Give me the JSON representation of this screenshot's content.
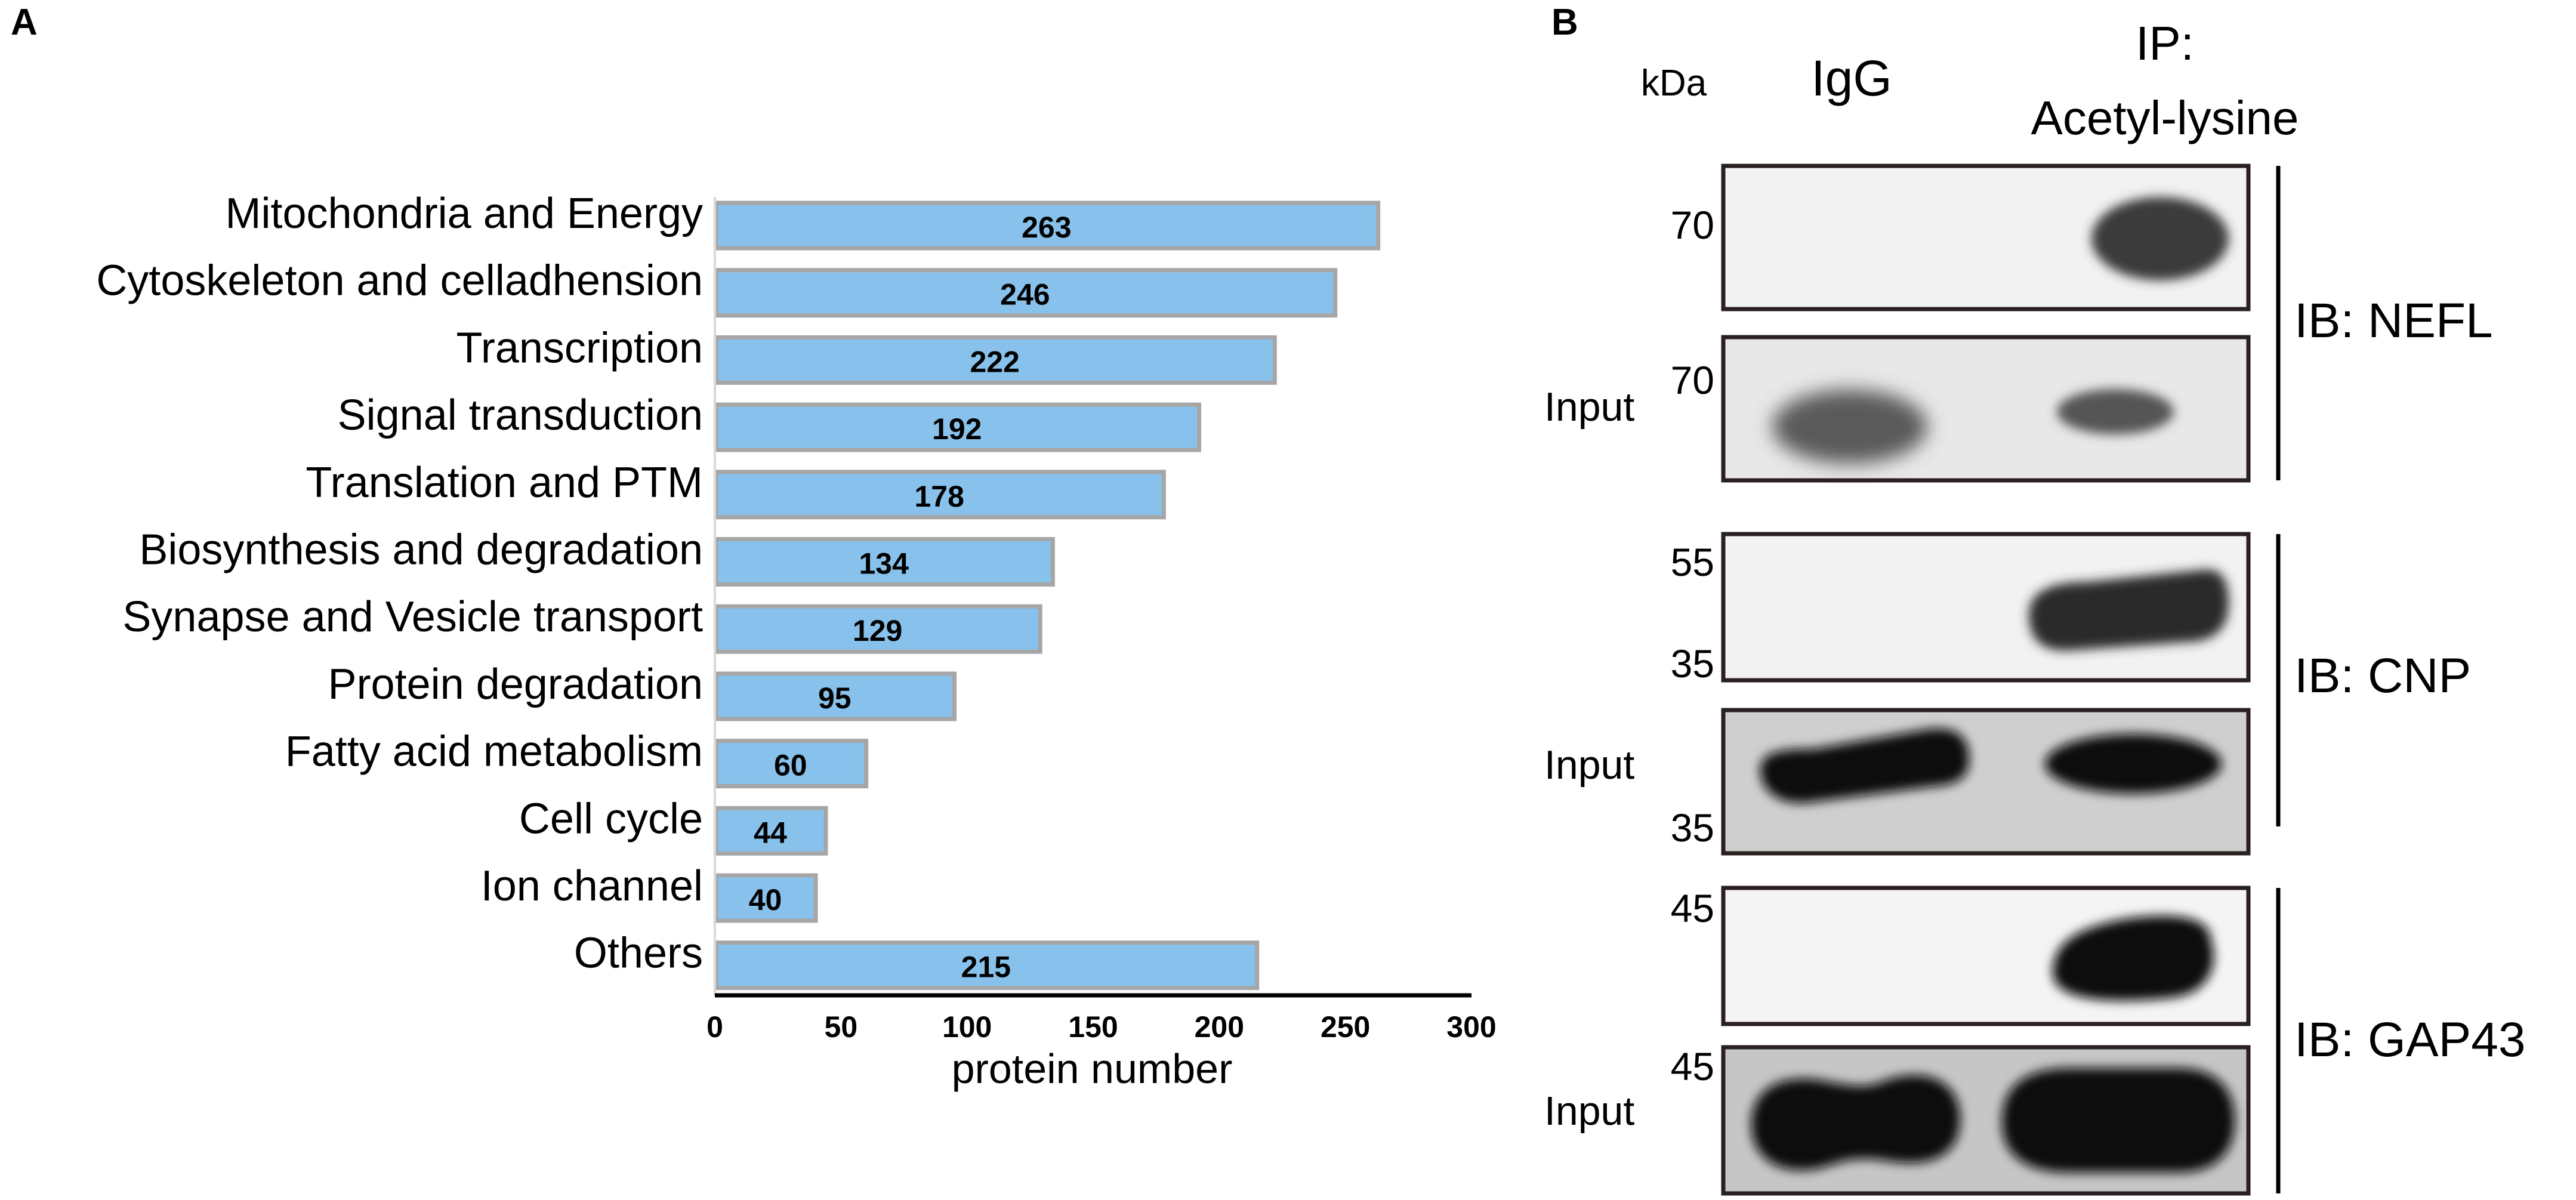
{
  "panel_a": {
    "letter": "A"
  },
  "panel_b": {
    "letter": "B"
  },
  "chart_data": {
    "type": "bar",
    "orientation": "horizontal",
    "categories": [
      "Mitochondria and Energy",
      "Cytoskeleton and celladhension",
      "Transcription",
      "Signal transduction",
      "Translation and PTM",
      "Biosynthesis and degradation",
      "Synapse and Vesicle transport",
      "Protein degradation",
      "Fatty acid metabolism",
      "Cell cycle",
      "Ion channel",
      "Others"
    ],
    "values": [
      263,
      246,
      222,
      192,
      178,
      134,
      129,
      95,
      60,
      44,
      40,
      215
    ],
    "xlabel": "protein number",
    "ylabel": "",
    "xlim": [
      0,
      300
    ],
    "xticks": [
      "0",
      "50",
      "100",
      "150",
      "200",
      "250",
      "300"
    ],
    "bar_color": "#88c2ec",
    "bar_edge_color": "#a6a6a6",
    "grid": false
  },
  "western_blot": {
    "kda_label": "kDa",
    "lane_igg": "IgG",
    "lane_ip_line1": "IP:",
    "lane_ip_line2": "Acetyl-lysine",
    "groups": [
      {
        "label": "IB: NEFL",
        "ip_markers": [
          "70"
        ],
        "input_label": "Input",
        "input_markers": [
          "70"
        ]
      },
      {
        "label": "IB: CNP",
        "ip_markers": [
          "55",
          "35"
        ],
        "input_label": "Input",
        "input_markers": [
          "35"
        ]
      },
      {
        "label": "IB: GAP43",
        "ip_markers": [
          "45"
        ],
        "input_label": "Input",
        "input_markers": [
          "45"
        ]
      }
    ]
  }
}
